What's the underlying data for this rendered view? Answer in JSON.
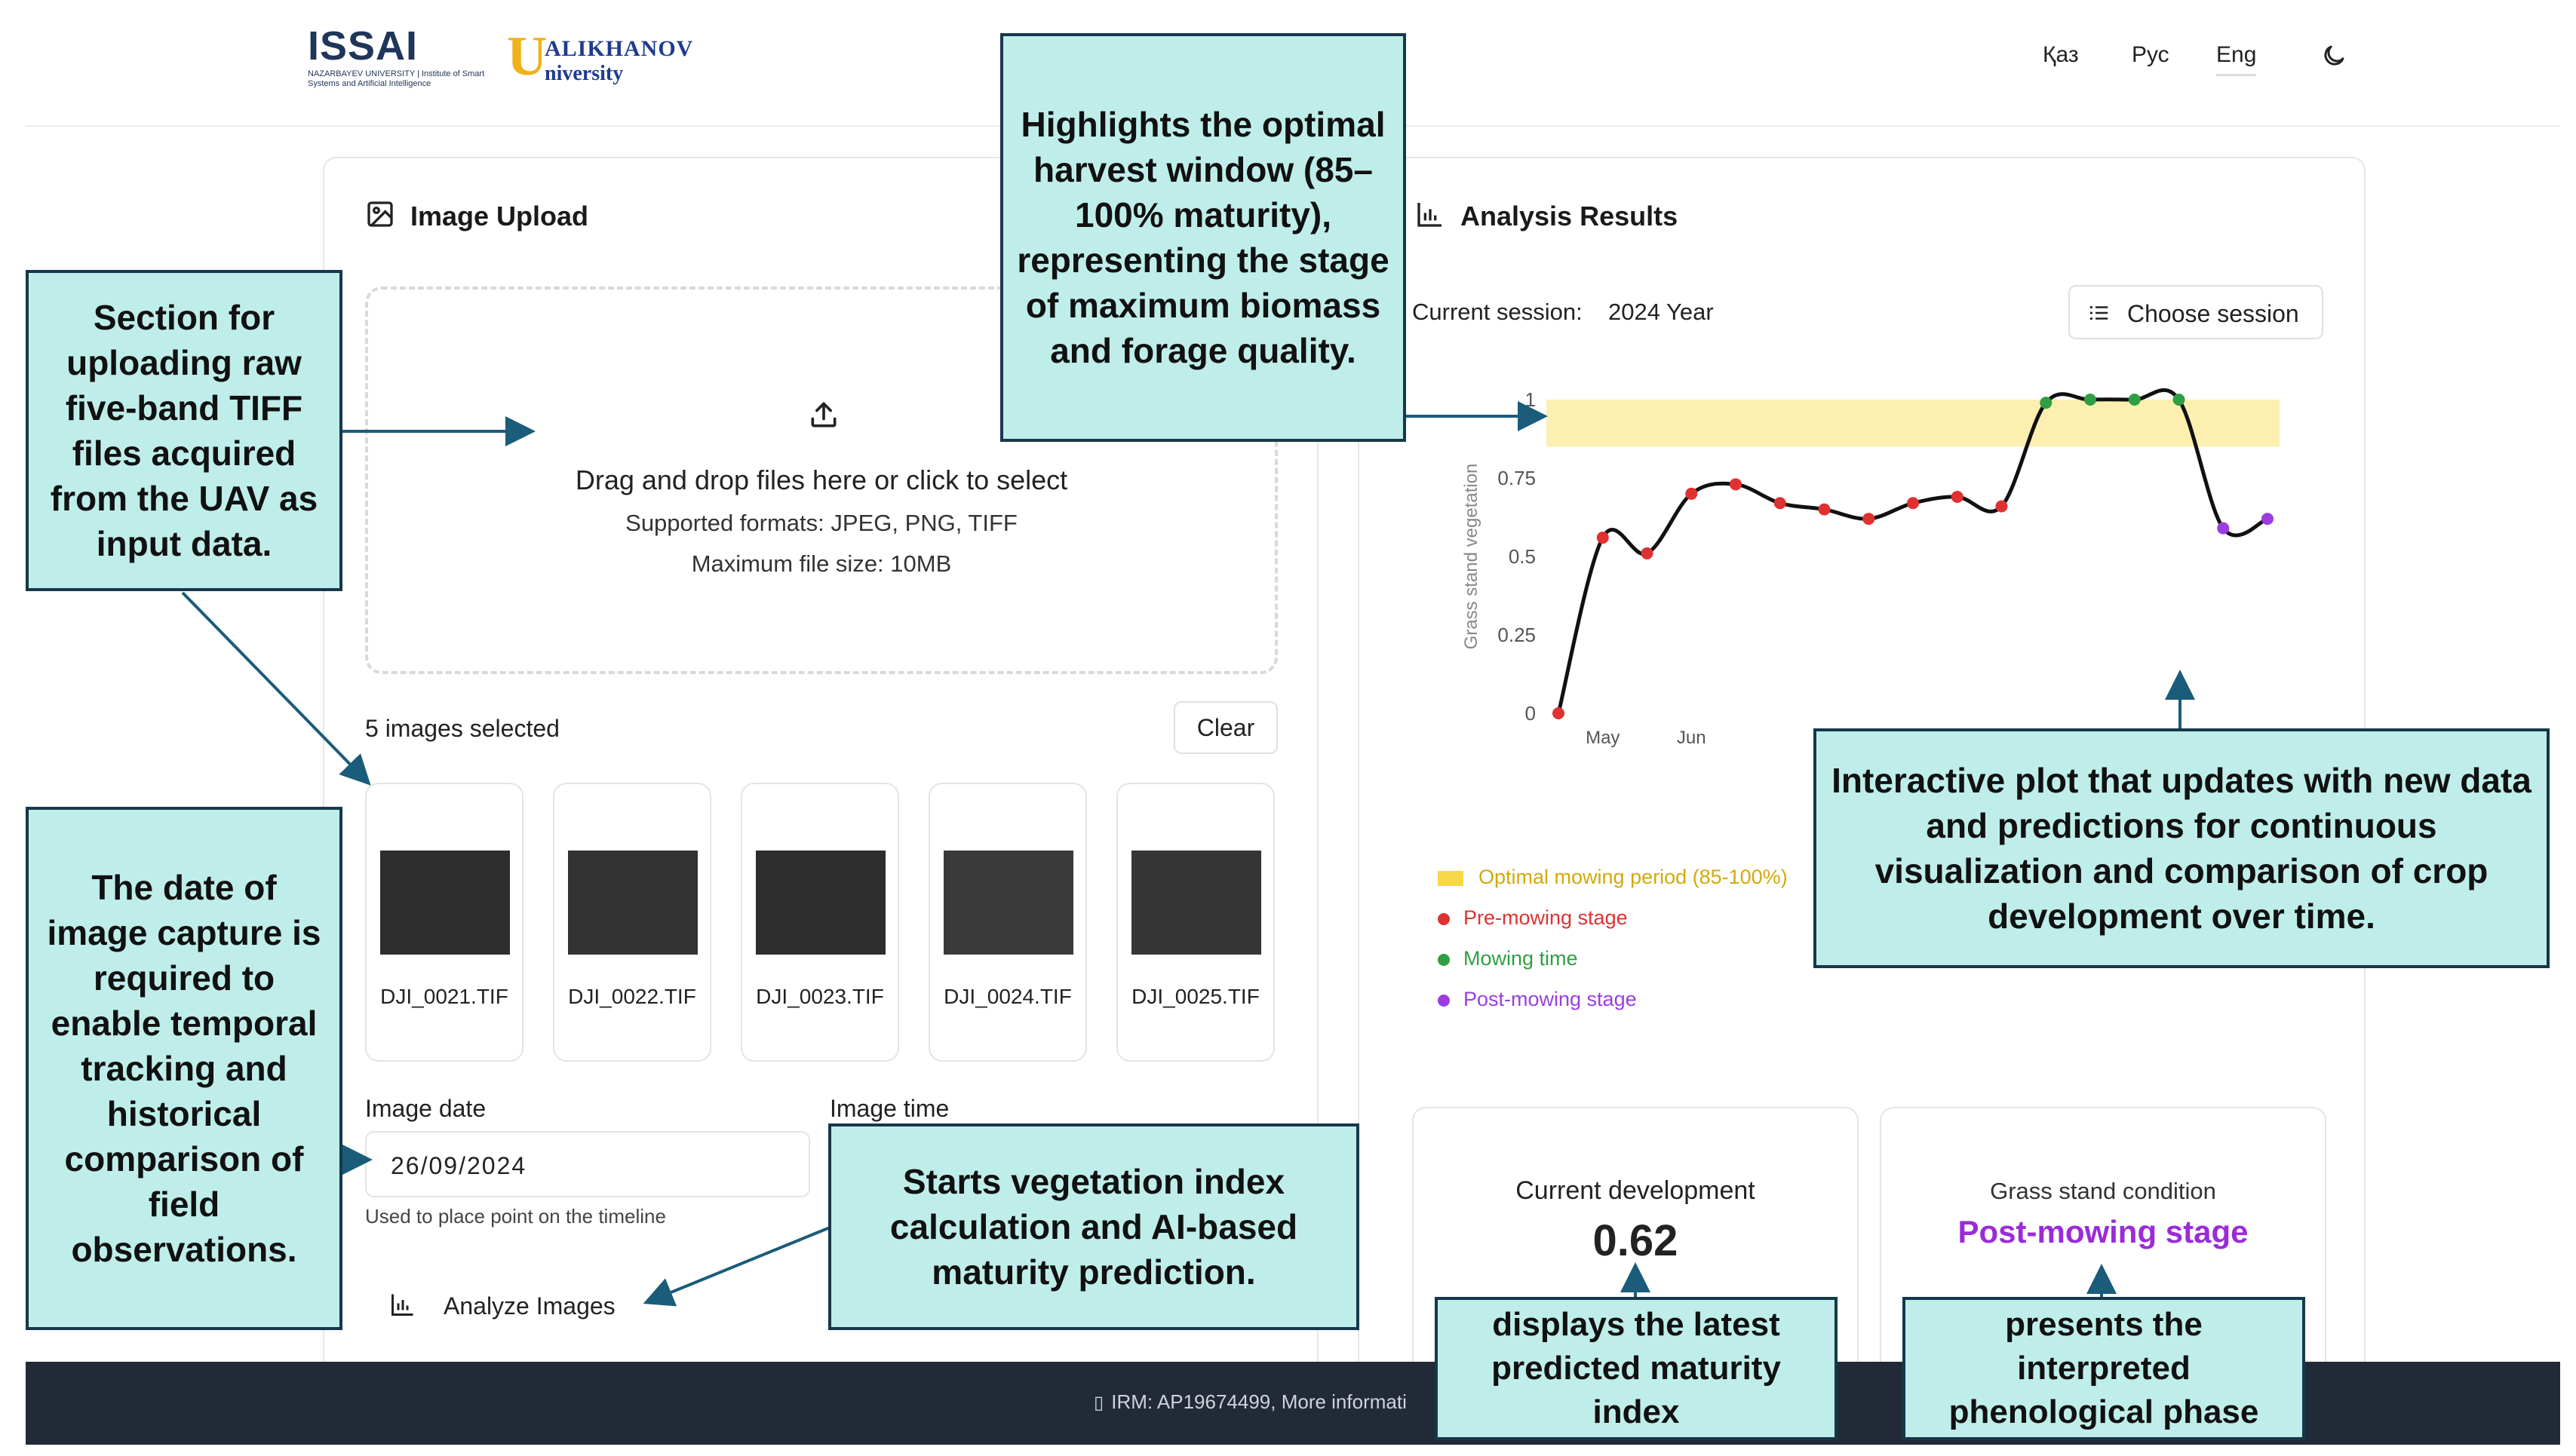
{
  "header": {
    "logo_issam": "ISSAI",
    "logo_issam_sub": "NAZARBAYEV UNIVERSITY | Institute of Smart Systems and Artificial Intelligence",
    "logo_ualikhanov_line1": "ALIKHANOV",
    "logo_ualikhanov_line2": "niversity",
    "languages": [
      "Қаз",
      "Рус",
      "Eng"
    ],
    "active_language": "Eng",
    "theme_icon": "moon-icon"
  },
  "upload": {
    "title": "Image Upload",
    "drop_main": "Drag and drop files here or click to select",
    "formats": "Supported formats: JPEG, PNG, TIFF",
    "max_size": "Maximum file size: 10MB",
    "selected_count": "5 images selected",
    "clear_label": "Clear",
    "files": [
      "DJI_0021.TIF",
      "DJI_0022.TIF",
      "DJI_0023.TIF",
      "DJI_0024.TIF",
      "DJI_0025.TIF"
    ],
    "image_date_label": "Image date",
    "image_time_label": "Image time",
    "date_value": "26/09/2024",
    "date_hint": "Used to place point on the timeline",
    "analyze_label": "Analyze Images"
  },
  "analysis": {
    "title": "Analysis Results",
    "session_label": "Current session:",
    "session_value": "2024 Year",
    "choose_session": "Choose session",
    "legend": [
      {
        "label": "Optimal mowing period (85-100%)",
        "color": "#d4a90a"
      },
      {
        "label": "Pre-mowing stage",
        "color": "#e03131"
      },
      {
        "label": "Mowing time",
        "color": "#2f9e44"
      },
      {
        "label": "Post-mowing stage",
        "color": "#9b3de0"
      }
    ],
    "current_dev_label": "Current development",
    "current_dev_value": "0.62",
    "condition_label": "Grass stand condition",
    "condition_value": "Post-mowing stage",
    "condition_color": "#9b2bd8"
  },
  "chart_data": {
    "type": "line",
    "ylabel": "Grass stand vegetation",
    "xlabel": "",
    "ylim": [
      0,
      1
    ],
    "yticks": [
      "0",
      "0.25",
      "0.5",
      "0.75",
      "1"
    ],
    "xtick_labels": [
      "May",
      "Jun"
    ],
    "optimal_band": [
      0.85,
      1.0
    ],
    "points": [
      {
        "y": 0.0,
        "stage": "pre"
      },
      {
        "y": 0.56,
        "stage": "pre"
      },
      {
        "y": 0.51,
        "stage": "pre"
      },
      {
        "y": 0.7,
        "stage": "pre"
      },
      {
        "y": 0.73,
        "stage": "pre"
      },
      {
        "y": 0.67,
        "stage": "pre"
      },
      {
        "y": 0.65,
        "stage": "pre"
      },
      {
        "y": 0.62,
        "stage": "pre"
      },
      {
        "y": 0.67,
        "stage": "pre"
      },
      {
        "y": 0.69,
        "stage": "pre"
      },
      {
        "y": 0.66,
        "stage": "pre"
      },
      {
        "y": 0.99,
        "stage": "mowing"
      },
      {
        "y": 1.0,
        "stage": "mowing"
      },
      {
        "y": 1.0,
        "stage": "mowing"
      },
      {
        "y": 1.0,
        "stage": "mowing"
      },
      {
        "y": 0.59,
        "stage": "post"
      },
      {
        "y": 0.62,
        "stage": "post"
      }
    ],
    "colors": {
      "pre": "#e03131",
      "mowing": "#2f9e44",
      "post": "#9b3de0",
      "band": "#fcefb0"
    }
  },
  "callouts": {
    "upload_section": "Section for uploading raw five-band TIFF files acquired from the UAV as input data.",
    "harvest_window": "Highlights the optimal harvest window (85–100% maturity), representing the stage of maximum biomass and forage quality.",
    "date_required": "The date of image capture is required to enable temporal tracking and historical comparison of field observations.",
    "analyze": "Starts vegetation index calculation and AI-based maturity prediction.",
    "interactive_plot": "Interactive plot that updates with new data and  predictions for continuous visualization and comparison of crop development over time.",
    "latest_index": "displays the latest predicted maturity index",
    "phenological": "presents the interpreted phenological phase"
  },
  "footer": {
    "text": "IRM: AP19674499, More informati"
  }
}
